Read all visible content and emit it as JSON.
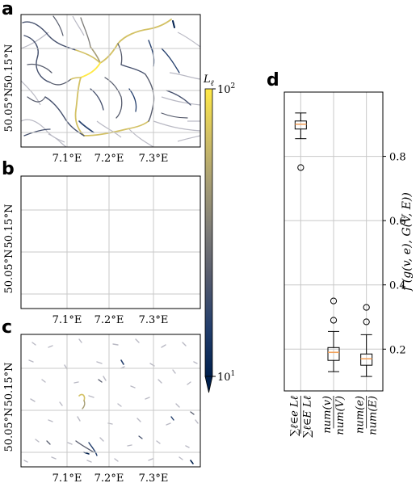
{
  "colors": {
    "colormap": [
      "#00204d",
      "#233e6c",
      "#575c6d",
      "#7c7b78",
      "#a69d75",
      "#d3c164",
      "#ffe945"
    ],
    "river_gray": "#b9b9c4",
    "grid": "#c8c8c8",
    "box_median": "#f2a25c"
  },
  "panels": {
    "a": {
      "letter": "a"
    },
    "b": {
      "letter": "b"
    },
    "c": {
      "letter": "c"
    },
    "d": {
      "letter": "d"
    }
  },
  "maps": {
    "lat_ticks": [
      "50.15°N",
      "50.05°N"
    ],
    "lon_ticks": [
      "7.1°E",
      "7.2°E",
      "7.3°E"
    ]
  },
  "colorbar": {
    "label": "L",
    "label_sub": "ℓ",
    "top_tick": "10",
    "top_exp": "2",
    "bottom_tick": "10",
    "bottom_exp": "1"
  },
  "chart_data": {
    "type": "box",
    "ylabel": "f (g(v, e), G(V, E))",
    "ylim": [
      0.07,
      1.0
    ],
    "yticks": [
      0.2,
      0.4,
      0.6,
      0.8
    ],
    "grid": true,
    "categories": [
      {
        "num": "∑ℓ∈e Lℓ",
        "den": "∑ℓ∈E Lℓ"
      },
      {
        "num": "num(v)",
        "den": "num(V)"
      },
      {
        "num": "num(e)",
        "den": "num(E)"
      }
    ],
    "boxes": [
      {
        "whisker_low": 0.855,
        "q1": 0.885,
        "median": 0.9,
        "q3": 0.91,
        "whisker_high": 0.935,
        "outliers": [
          0.765
        ]
      },
      {
        "whisker_low": 0.13,
        "q1": 0.165,
        "median": 0.19,
        "q3": 0.205,
        "whisker_high": 0.255,
        "outliers": [
          0.29,
          0.35
        ]
      },
      {
        "whisker_low": 0.115,
        "q1": 0.15,
        "median": 0.17,
        "q3": 0.185,
        "whisker_high": 0.245,
        "outliers": [
          0.285,
          0.33
        ]
      }
    ]
  }
}
